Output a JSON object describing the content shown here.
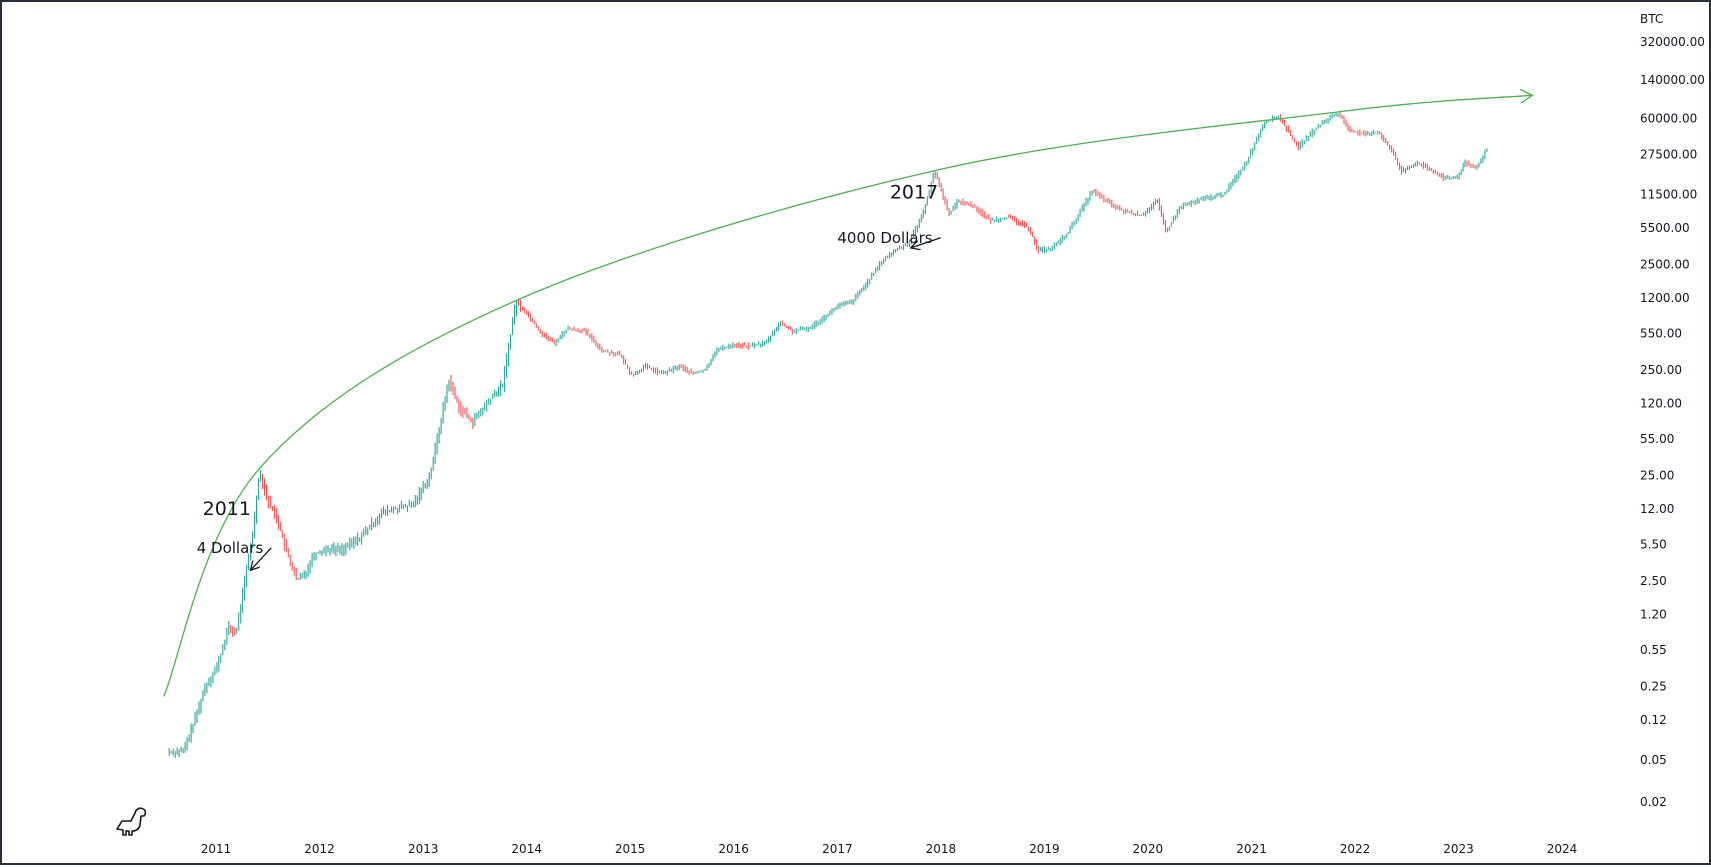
{
  "chart_data": {
    "type": "candlestick",
    "symbol": "BTC",
    "y_scale": "log",
    "grid": false,
    "colors": {
      "up": "#26a69a",
      "down": "#ef5350",
      "curve": "#4caf50",
      "text": "#131722",
      "frame": "#2a2e39"
    },
    "x_ticks": [
      "2011",
      "2012",
      "2013",
      "2014",
      "2015",
      "2016",
      "2017",
      "2018",
      "2019",
      "2020",
      "2021",
      "2022",
      "2023",
      "2024"
    ],
    "y_ticks": [
      "320000.00",
      "140000.00",
      "60000.00",
      "27500.00",
      "11500.00",
      "5500.00",
      "2500.00",
      "1200.00",
      "550.00",
      "250.00",
      "120.00",
      "55.00",
      "25.00",
      "12.00",
      "5.50",
      "2.50",
      "1.20",
      "0.55",
      "0.25",
      "0.12",
      "0.05",
      "0.02"
    ],
    "path": [
      [
        "2010-07-20",
        0.06
      ],
      [
        "2010-09-15",
        0.06
      ],
      [
        "2010-10-25",
        0.12
      ],
      [
        "2010-12-01",
        0.25
      ],
      [
        "2011-01-15",
        0.4
      ],
      [
        "2011-02-20",
        0.9
      ],
      [
        "2011-03-20",
        0.8
      ],
      [
        "2011-04-20",
        2.5
      ],
      [
        "2011-05-20",
        8
      ],
      [
        "2011-06-10",
        28
      ],
      [
        "2011-07-10",
        14
      ],
      [
        "2011-08-10",
        10
      ],
      [
        "2011-09-10",
        5
      ],
      [
        "2011-10-20",
        2.5
      ],
      [
        "2011-11-20",
        3
      ],
      [
        "2011-12-20",
        4.5
      ],
      [
        "2012-02-01",
        5
      ],
      [
        "2012-04-01",
        5
      ],
      [
        "2012-06-01",
        6.5
      ],
      [
        "2012-08-15",
        11
      ],
      [
        "2012-10-01",
        12
      ],
      [
        "2012-12-01",
        13
      ],
      [
        "2013-02-01",
        25
      ],
      [
        "2013-04-08",
        200
      ],
      [
        "2013-05-15",
        110
      ],
      [
        "2013-07-01",
        80
      ],
      [
        "2013-09-01",
        130
      ],
      [
        "2013-10-15",
        180
      ],
      [
        "2013-11-30",
        1100
      ],
      [
        "2014-01-10",
        850
      ],
      [
        "2014-03-01",
        550
      ],
      [
        "2014-04-15",
        450
      ],
      [
        "2014-06-01",
        620
      ],
      [
        "2014-08-01",
        580
      ],
      [
        "2014-10-01",
        380
      ],
      [
        "2014-12-01",
        350
      ],
      [
        "2015-01-15",
        220
      ],
      [
        "2015-03-01",
        270
      ],
      [
        "2015-05-01",
        230
      ],
      [
        "2015-07-01",
        270
      ],
      [
        "2015-08-15",
        230
      ],
      [
        "2015-10-01",
        250
      ],
      [
        "2015-11-05",
        380
      ],
      [
        "2016-01-01",
        430
      ],
      [
        "2016-03-01",
        420
      ],
      [
        "2016-05-01",
        450
      ],
      [
        "2016-06-18",
        700
      ],
      [
        "2016-08-01",
        580
      ],
      [
        "2016-10-01",
        620
      ],
      [
        "2016-12-20",
        900
      ],
      [
        "2017-01-05",
        1000
      ],
      [
        "2017-03-01",
        1100
      ],
      [
        "2017-05-01",
        1800
      ],
      [
        "2017-06-15",
        2700
      ],
      [
        "2017-08-01",
        3400
      ],
      [
        "2017-09-15",
        4000
      ],
      [
        "2017-11-01",
        7000
      ],
      [
        "2017-12-17",
        19000
      ],
      [
        "2018-02-06",
        7500
      ],
      [
        "2018-03-10",
        10000
      ],
      [
        "2018-05-01",
        9000
      ],
      [
        "2018-07-01",
        6500
      ],
      [
        "2018-09-01",
        7000
      ],
      [
        "2018-11-15",
        5500
      ],
      [
        "2018-12-15",
        3400
      ],
      [
        "2019-02-01",
        3500
      ],
      [
        "2019-04-01",
        5000
      ],
      [
        "2019-06-26",
        12500
      ],
      [
        "2019-08-01",
        10500
      ],
      [
        "2019-10-01",
        8200
      ],
      [
        "2019-12-15",
        7200
      ],
      [
        "2020-02-10",
        10000
      ],
      [
        "2020-03-13",
        5000
      ],
      [
        "2020-05-01",
        8800
      ],
      [
        "2020-07-25",
        10500
      ],
      [
        "2020-10-01",
        11500
      ],
      [
        "2020-12-20",
        23000
      ],
      [
        "2021-02-20",
        55000
      ],
      [
        "2021-04-14",
        63000
      ],
      [
        "2021-06-20",
        32000
      ],
      [
        "2021-08-20",
        48000
      ],
      [
        "2021-10-20",
        64000
      ],
      [
        "2021-11-10",
        67000
      ],
      [
        "2021-12-20",
        47000
      ],
      [
        "2022-02-15",
        42000
      ],
      [
        "2022-04-01",
        45000
      ],
      [
        "2022-05-20",
        29000
      ],
      [
        "2022-06-18",
        19000
      ],
      [
        "2022-08-15",
        23000
      ],
      [
        "2022-10-01",
        19500
      ],
      [
        "2022-11-15",
        16500
      ],
      [
        "2022-12-31",
        16500
      ],
      [
        "2023-02-01",
        23000
      ],
      [
        "2023-03-10",
        20000
      ],
      [
        "2023-04-14",
        30000
      ]
    ],
    "curve": [
      [
        "2010-07-01",
        0.2
      ],
      [
        "2011-06-08",
        30
      ],
      [
        "2013-11-30",
        1150
      ],
      [
        "2017-12-17",
        19500
      ],
      [
        "2021-11-10",
        70000
      ],
      [
        "2023-09-15",
        100000
      ]
    ],
    "annotations": [
      {
        "label": "2011",
        "date": "2010-11-15",
        "value": 10.5,
        "style": "big"
      },
      {
        "label": "4 Dollars",
        "date": "2010-10-25",
        "value": 4.6,
        "style": "small",
        "arrow_to": [
          "2011-05-05",
          3.2
        ]
      },
      {
        "label": "2017",
        "date": "2017-07-05",
        "value": 10500,
        "style": "big"
      },
      {
        "label": "4000 Dollars",
        "date": "2017-01-01",
        "value": 4000,
        "style": "small",
        "arrow_to": [
          "2017-09-20",
          3600
        ]
      }
    ]
  }
}
